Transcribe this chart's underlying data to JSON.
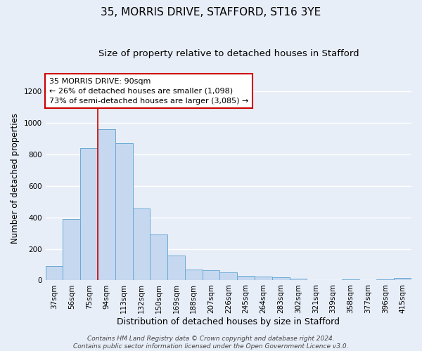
{
  "title1": "35, MORRIS DRIVE, STAFFORD, ST16 3YE",
  "title2": "Size of property relative to detached houses in Stafford",
  "xlabel": "Distribution of detached houses by size in Stafford",
  "ylabel": "Number of detached properties",
  "categories": [
    "37sqm",
    "56sqm",
    "75sqm",
    "94sqm",
    "113sqm",
    "132sqm",
    "150sqm",
    "169sqm",
    "188sqm",
    "207sqm",
    "226sqm",
    "245sqm",
    "264sqm",
    "283sqm",
    "302sqm",
    "321sqm",
    "339sqm",
    "358sqm",
    "377sqm",
    "396sqm",
    "415sqm"
  ],
  "values": [
    90,
    390,
    840,
    960,
    870,
    455,
    290,
    160,
    70,
    65,
    50,
    30,
    25,
    18,
    10,
    0,
    0,
    8,
    0,
    8,
    15
  ],
  "bar_color": "#c5d8f0",
  "bar_edge_color": "#6aaad4",
  "background_color": "#e8eef8",
  "grid_color": "#ffffff",
  "vline_x": 2.5,
  "vline_color": "#cc0000",
  "annotation_line1": "35 MORRIS DRIVE: 90sqm",
  "annotation_line2": "← 26% of detached houses are smaller (1,098)",
  "annotation_line3": "73% of semi-detached houses are larger (3,085) →",
  "annotation_box_color": "#ffffff",
  "annotation_edge_color": "#cc0000",
  "footer1": "Contains HM Land Registry data © Crown copyright and database right 2024.",
  "footer2": "Contains public sector information licensed under the Open Government Licence v3.0.",
  "ylim": [
    0,
    1300
  ],
  "yticks": [
    0,
    200,
    400,
    600,
    800,
    1000,
    1200
  ],
  "title1_fontsize": 11,
  "title2_fontsize": 9.5,
  "xlabel_fontsize": 9,
  "ylabel_fontsize": 8.5,
  "tick_fontsize": 7.5,
  "annotation_fontsize": 8,
  "footer_fontsize": 6.5
}
